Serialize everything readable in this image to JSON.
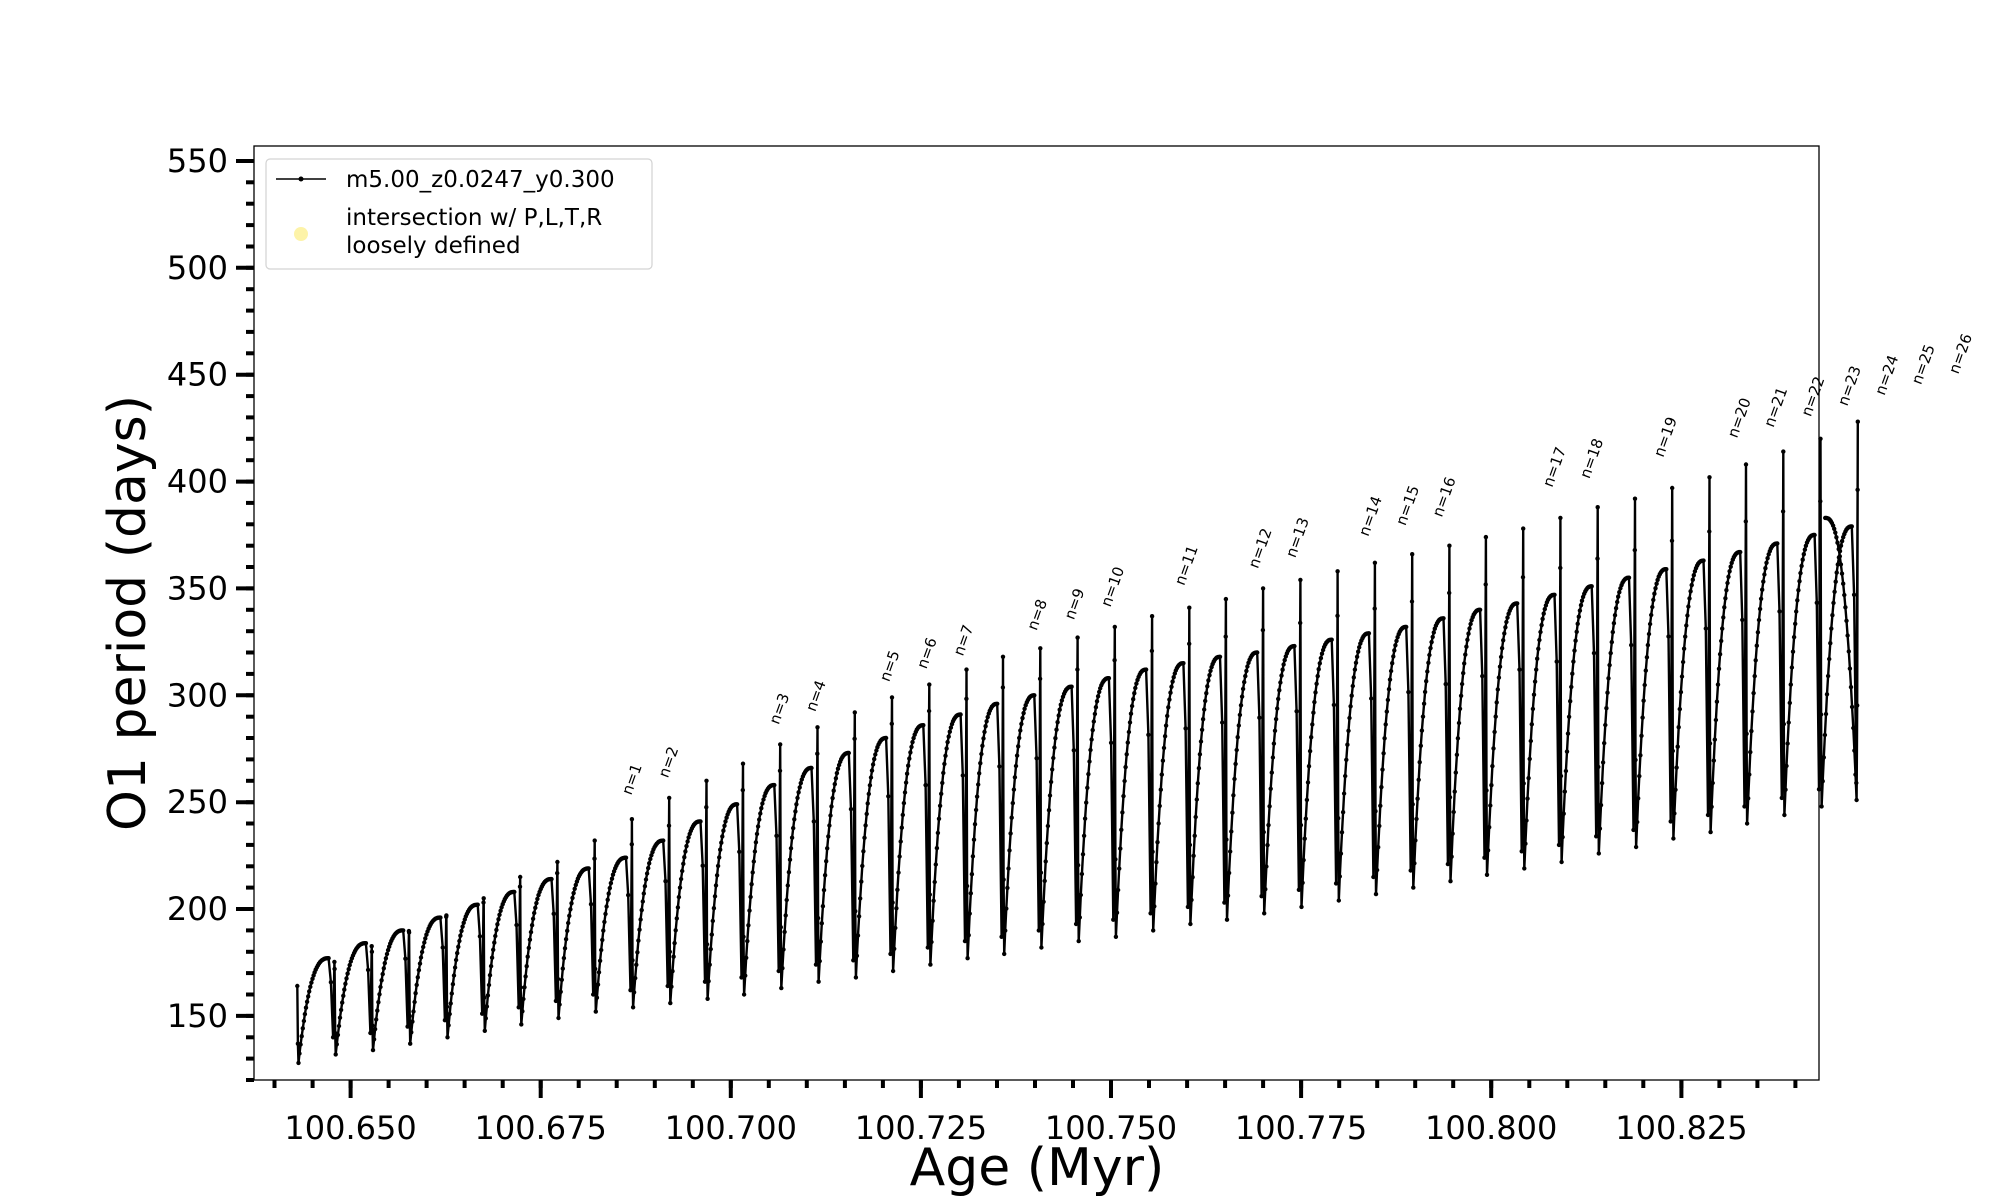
{
  "chart_data": {
    "type": "line",
    "xlabel": "Age (Myr)",
    "ylabel": "O1 period (days)",
    "xlim": [
      100.6373,
      100.8431
    ],
    "ylim": [
      120,
      557
    ],
    "x_ticks": [
      100.65,
      100.675,
      100.7,
      100.725,
      100.75,
      100.775,
      100.8,
      100.825
    ],
    "x_tick_labels": [
      "100.650",
      "100.675",
      "100.700",
      "100.725",
      "100.750",
      "100.775",
      "100.800",
      "100.825"
    ],
    "y_ticks": [
      150,
      200,
      250,
      300,
      350,
      400,
      450,
      500,
      550
    ],
    "y_tick_labels": [
      "150",
      "200",
      "250",
      "300",
      "350",
      "400",
      "450",
      "500",
      "550"
    ],
    "x_minor_step": 0.005,
    "y_minor_step": 10,
    "grid": false,
    "legend": {
      "placement": "top-left",
      "entries": [
        {
          "label": "m5.00_z0.0247_y0.300",
          "marker": "line-dot",
          "color": "#000000"
        },
        {
          "label": "intersection w/ P,L,T,R\nloosely defined",
          "marker": "circle",
          "color": "#fdf3a8"
        }
      ]
    },
    "series": [
      {
        "name": "m5.00_z0.0247_y0.300",
        "color": "#000000",
        "pulses": [
          {
            "age": 100.643,
            "trough": 128,
            "plateau": 177,
            "spike": 164
          },
          {
            "age": 100.6479,
            "trough": 132,
            "plateau": 184,
            "spike": 172
          },
          {
            "age": 100.6528,
            "trough": 134,
            "plateau": 190,
            "spike": 180
          },
          {
            "age": 100.6577,
            "trough": 137,
            "plateau": 196,
            "spike": 189
          },
          {
            "age": 100.6626,
            "trough": 140,
            "plateau": 202,
            "spike": 197
          },
          {
            "age": 100.6675,
            "trough": 143,
            "plateau": 208,
            "spike": 205
          },
          {
            "age": 100.6723,
            "trough": 146,
            "plateau": 214,
            "spike": 215
          },
          {
            "age": 100.6772,
            "trough": 149,
            "plateau": 219,
            "spike": 222
          },
          {
            "age": 100.6821,
            "trough": 152,
            "plateau": 224,
            "spike": 232
          },
          {
            "age": 100.687,
            "trough": 154,
            "plateau": 232,
            "spike": 242
          },
          {
            "age": 100.6919,
            "trough": 156,
            "plateau": 241,
            "spike": 252
          },
          {
            "age": 100.6968,
            "trough": 158,
            "plateau": 249,
            "spike": 260
          },
          {
            "age": 100.7016,
            "trough": 160,
            "plateau": 258,
            "spike": 268
          },
          {
            "age": 100.7065,
            "trough": 163,
            "plateau": 266,
            "spike": 277
          },
          {
            "age": 100.7114,
            "trough": 166,
            "plateau": 273,
            "spike": 285
          },
          {
            "age": 100.7163,
            "trough": 168,
            "plateau": 280,
            "spike": 292
          },
          {
            "age": 100.7212,
            "trough": 171,
            "plateau": 286,
            "spike": 299
          },
          {
            "age": 100.7261,
            "trough": 174,
            "plateau": 291,
            "spike": 305
          },
          {
            "age": 100.731,
            "trough": 177,
            "plateau": 296,
            "spike": 312
          },
          {
            "age": 100.7358,
            "trough": 179,
            "plateau": 300,
            "spike": 318
          },
          {
            "age": 100.7407,
            "trough": 182,
            "plateau": 304,
            "spike": 322
          },
          {
            "age": 100.7456,
            "trough": 185,
            "plateau": 308,
            "spike": 327
          },
          {
            "age": 100.7505,
            "trough": 187,
            "plateau": 312,
            "spike": 332
          },
          {
            "age": 100.7554,
            "trough": 190,
            "plateau": 315,
            "spike": 337
          },
          {
            "age": 100.7603,
            "trough": 193,
            "plateau": 318,
            "spike": 341
          },
          {
            "age": 100.7651,
            "trough": 195,
            "plateau": 320,
            "spike": 345
          },
          {
            "age": 100.77,
            "trough": 198,
            "plateau": 323,
            "spike": 350
          },
          {
            "age": 100.7749,
            "trough": 201,
            "plateau": 326,
            "spike": 354
          },
          {
            "age": 100.7798,
            "trough": 204,
            "plateau": 329,
            "spike": 358
          },
          {
            "age": 100.7847,
            "trough": 207,
            "plateau": 332,
            "spike": 362
          },
          {
            "age": 100.7896,
            "trough": 210,
            "plateau": 336,
            "spike": 366
          },
          {
            "age": 100.7945,
            "trough": 213,
            "plateau": 340,
            "spike": 370
          },
          {
            "age": 100.7993,
            "trough": 216,
            "plateau": 343,
            "spike": 374
          },
          {
            "age": 100.8042,
            "trough": 219,
            "plateau": 347,
            "spike": 378
          },
          {
            "age": 100.8091,
            "trough": 222,
            "plateau": 351,
            "spike": 383
          },
          {
            "age": 100.814,
            "trough": 226,
            "plateau": 355,
            "spike": 388
          },
          {
            "age": 100.8189,
            "trough": 229,
            "plateau": 359,
            "spike": 392
          },
          {
            "age": 100.8238,
            "trough": 233,
            "plateau": 363,
            "spike": 397
          },
          {
            "age": 100.8287,
            "trough": 236,
            "plateau": 367,
            "spike": 402
          },
          {
            "age": 100.8335,
            "trough": 240,
            "plateau": 371,
            "spike": 408
          },
          {
            "age": 100.8384,
            "trough": 244,
            "plateau": 375,
            "spike": 414
          },
          {
            "age": 100.8433,
            "trough": 248,
            "plateau": 379,
            "spike": 420
          },
          {
            "age": 100.8482,
            "trough": 251,
            "plateau": 383,
            "spike": 428
          }
        ]
      }
    ],
    "annotations": [
      {
        "text": "n=1",
        "age": 100.6869,
        "period": 253
      },
      {
        "text": "n=2",
        "age": 100.6917,
        "period": 261
      },
      {
        "text": "n=3",
        "age": 100.7063,
        "period": 286
      },
      {
        "text": "n=4",
        "age": 100.7111,
        "period": 292
      },
      {
        "text": "n=5",
        "age": 100.7208,
        "period": 306
      },
      {
        "text": "n=6",
        "age": 100.7257,
        "period": 312
      },
      {
        "text": "n=7",
        "age": 100.7305,
        "period": 318
      },
      {
        "text": "n=8",
        "age": 100.7402,
        "period": 330
      },
      {
        "text": "n=9",
        "age": 100.7451,
        "period": 335
      },
      {
        "text": "n=10",
        "age": 100.7499,
        "period": 341
      },
      {
        "text": "n=11",
        "age": 100.7596,
        "period": 351
      },
      {
        "text": "n=12",
        "age": 100.7693,
        "period": 359
      },
      {
        "text": "n=13",
        "age": 100.7742,
        "period": 364
      },
      {
        "text": "n=14",
        "age": 100.7838,
        "period": 374
      },
      {
        "text": "n=15",
        "age": 100.7887,
        "period": 379
      },
      {
        "text": "n=16",
        "age": 100.7935,
        "period": 383
      },
      {
        "text": "n=17",
        "age": 100.808,
        "period": 397
      },
      {
        "text": "n=18",
        "age": 100.8129,
        "period": 401
      },
      {
        "text": "n=19",
        "age": 100.8226,
        "period": 411
      },
      {
        "text": "n=20",
        "age": 100.8323,
        "period": 420
      },
      {
        "text": "n=21",
        "age": 100.8371,
        "period": 425
      },
      {
        "text": "n=22",
        "age": 100.842,
        "period": 430
      },
      {
        "text": "n=23",
        "age": 100.8468,
        "period": 435
      },
      {
        "text": "n=24",
        "age": 100.8517,
        "period": 440
      },
      {
        "text": "n=25",
        "age": 100.8565,
        "period": 445
      },
      {
        "text": "n=26",
        "age": 100.8614,
        "period": 450
      }
    ]
  }
}
